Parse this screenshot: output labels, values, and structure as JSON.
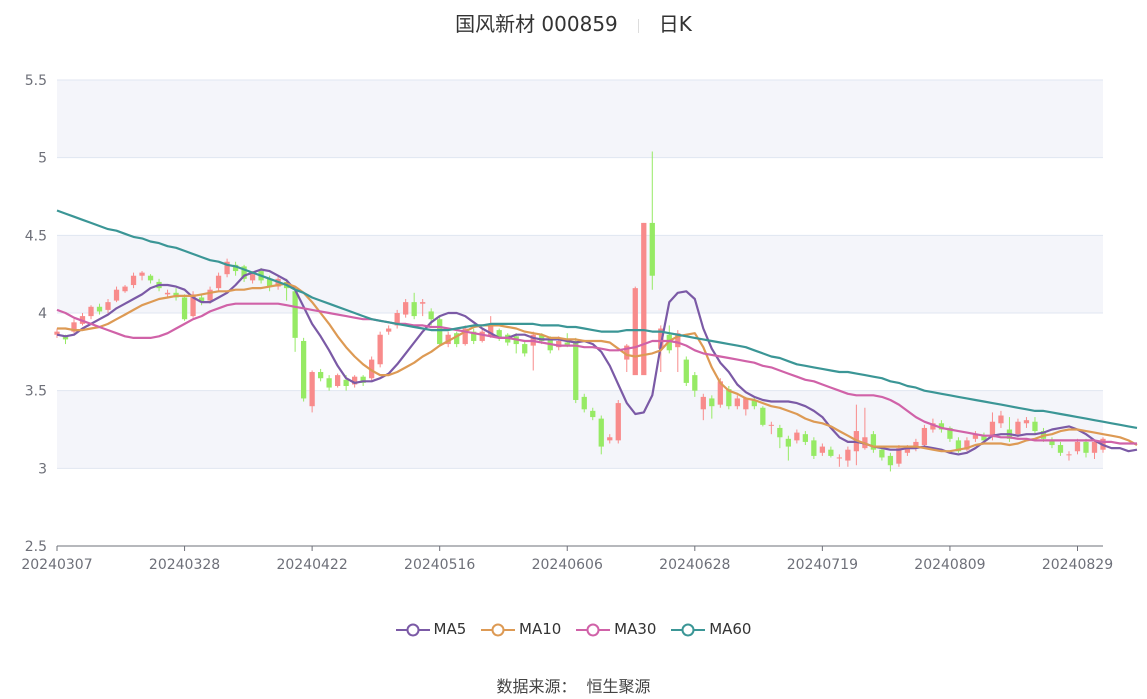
{
  "header": {
    "title": "国风新材 000859",
    "period": "日K"
  },
  "footer": {
    "source_label": "数据来源：",
    "source_name": "恒生聚源"
  },
  "colors": {
    "up": "#f88b8b",
    "down": "#96ea64",
    "MA5": "#7b5aa6",
    "MA10": "#dd9a54",
    "MA30": "#d062a8",
    "MA60": "#3b9696",
    "band": "#f4f5fa",
    "grid": "#e0e6f1",
    "axis": "#6e7079"
  },
  "chart_data": {
    "type": "candlestick",
    "y_ticks": [
      "2.5",
      "3",
      "3.5",
      "4",
      "4.5",
      "5",
      "5.5"
    ],
    "ylim": [
      2.5,
      5.5
    ],
    "x_ticks": [
      "20240307",
      "20240328",
      "20240422",
      "20240516",
      "20240606",
      "20240628",
      "20240719",
      "20240809",
      "20240829"
    ],
    "x_tick_index": [
      0,
      15,
      30,
      45,
      60,
      75,
      90,
      105,
      120
    ],
    "grid": true,
    "legend_position": "bottom-center",
    "candles": [
      [
        3.86,
        3.88,
        3.9,
        3.84
      ],
      [
        3.85,
        3.83,
        3.86,
        3.8
      ],
      [
        3.88,
        3.94,
        3.96,
        3.87
      ],
      [
        3.93,
        3.98,
        4.0,
        3.92
      ],
      [
        3.98,
        4.04,
        4.05,
        3.96
      ],
      [
        4.04,
        4.01,
        4.06,
        3.99
      ],
      [
        4.02,
        4.07,
        4.09,
        4.0
      ],
      [
        4.08,
        4.15,
        4.17,
        4.07
      ],
      [
        4.14,
        4.17,
        4.18,
        4.13
      ],
      [
        4.18,
        4.24,
        4.26,
        4.16
      ],
      [
        4.24,
        4.26,
        4.27,
        4.21
      ],
      [
        4.24,
        4.21,
        4.25,
        4.19
      ],
      [
        4.2,
        4.16,
        4.22,
        4.14
      ],
      [
        4.12,
        4.13,
        4.15,
        4.1
      ],
      [
        4.13,
        4.1,
        4.16,
        4.08
      ],
      [
        4.1,
        3.96,
        4.12,
        3.95
      ],
      [
        3.98,
        4.12,
        4.14,
        3.97
      ],
      [
        4.1,
        4.07,
        4.12,
        4.05
      ],
      [
        4.08,
        4.15,
        4.17,
        4.06
      ],
      [
        4.16,
        4.24,
        4.26,
        4.14
      ],
      [
        4.25,
        4.33,
        4.35,
        4.23
      ],
      [
        4.31,
        4.27,
        4.33,
        4.24
      ],
      [
        4.3,
        4.22,
        4.31,
        4.2
      ],
      [
        4.21,
        4.25,
        4.27,
        4.19
      ],
      [
        4.27,
        4.21,
        4.29,
        4.19
      ],
      [
        4.22,
        4.17,
        4.24,
        4.14
      ],
      [
        4.17,
        4.22,
        4.24,
        4.15
      ],
      [
        4.2,
        4.16,
        4.22,
        4.08
      ],
      [
        4.14,
        3.84,
        4.16,
        3.75
      ],
      [
        3.82,
        3.45,
        3.84,
        3.43
      ],
      [
        3.4,
        3.62,
        3.63,
        3.36
      ],
      [
        3.62,
        3.58,
        3.64,
        3.56
      ],
      [
        3.58,
        3.52,
        3.6,
        3.5
      ],
      [
        3.53,
        3.6,
        3.61,
        3.52
      ],
      [
        3.57,
        3.53,
        3.6,
        3.5
      ],
      [
        3.54,
        3.59,
        3.6,
        3.52
      ],
      [
        3.59,
        3.55,
        3.6,
        3.53
      ],
      [
        3.58,
        3.7,
        3.72,
        3.56
      ],
      [
        3.67,
        3.86,
        3.88,
        3.65
      ],
      [
        3.88,
        3.9,
        3.92,
        3.86
      ],
      [
        3.92,
        4.0,
        4.02,
        3.9
      ],
      [
        3.99,
        4.07,
        4.09,
        3.97
      ],
      [
        4.07,
        3.98,
        4.13,
        3.96
      ],
      [
        4.06,
        4.07,
        4.09,
        3.98
      ],
      [
        4.01,
        3.96,
        4.03,
        3.92
      ],
      [
        3.96,
        3.8,
        3.98,
        3.79
      ],
      [
        3.8,
        3.86,
        3.88,
        3.78
      ],
      [
        3.87,
        3.8,
        3.88,
        3.78
      ],
      [
        3.8,
        3.9,
        3.92,
        3.79
      ],
      [
        3.88,
        3.82,
        3.9,
        3.8
      ],
      [
        3.82,
        3.88,
        3.9,
        3.81
      ],
      [
        3.85,
        3.92,
        3.98,
        3.84
      ],
      [
        3.89,
        3.84,
        3.9,
        3.82
      ],
      [
        3.86,
        3.81,
        3.87,
        3.79
      ],
      [
        3.85,
        3.8,
        3.87,
        3.74
      ],
      [
        3.8,
        3.74,
        3.82,
        3.72
      ],
      [
        3.79,
        3.86,
        3.88,
        3.63
      ],
      [
        3.86,
        3.82,
        3.87,
        3.8
      ],
      [
        3.83,
        3.76,
        3.85,
        3.74
      ],
      [
        3.78,
        3.82,
        3.85,
        3.76
      ],
      [
        3.81,
        3.79,
        3.87,
        3.78
      ],
      [
        3.82,
        3.44,
        3.84,
        3.42
      ],
      [
        3.46,
        3.38,
        3.48,
        3.36
      ],
      [
        3.37,
        3.33,
        3.39,
        3.31
      ],
      [
        3.32,
        3.14,
        3.34,
        3.09
      ],
      [
        3.18,
        3.2,
        3.22,
        3.16
      ],
      [
        3.18,
        3.42,
        3.44,
        3.16
      ],
      [
        3.7,
        3.79,
        3.8,
        3.62
      ],
      [
        3.6,
        4.16,
        4.17,
        4.15
      ],
      [
        3.6,
        4.58,
        4.58,
        4.57
      ],
      [
        4.58,
        4.24,
        5.04,
        4.15
      ],
      [
        3.77,
        3.9,
        3.92,
        3.62
      ],
      [
        3.86,
        3.76,
        3.92,
        3.74
      ],
      [
        3.78,
        3.87,
        3.89,
        3.62
      ],
      [
        3.7,
        3.55,
        3.72,
        3.53
      ],
      [
        3.6,
        3.5,
        3.62,
        3.46
      ],
      [
        3.38,
        3.46,
        3.48,
        3.31
      ],
      [
        3.45,
        3.4,
        3.47,
        3.32
      ],
      [
        3.41,
        3.56,
        3.58,
        3.39
      ],
      [
        3.51,
        3.4,
        3.53,
        3.38
      ],
      [
        3.4,
        3.45,
        3.47,
        3.38
      ],
      [
        3.38,
        3.45,
        3.46,
        3.34
      ],
      [
        3.44,
        3.4,
        3.46,
        3.38
      ],
      [
        3.39,
        3.28,
        3.4,
        3.27
      ],
      [
        3.28,
        3.28,
        3.3,
        3.22
      ],
      [
        3.26,
        3.2,
        3.28,
        3.13
      ],
      [
        3.19,
        3.14,
        3.21,
        3.05
      ],
      [
        3.18,
        3.23,
        3.25,
        3.16
      ],
      [
        3.22,
        3.17,
        3.24,
        3.15
      ],
      [
        3.18,
        3.08,
        3.2,
        3.06
      ],
      [
        3.1,
        3.14,
        3.16,
        3.08
      ],
      [
        3.12,
        3.08,
        3.14,
        3.07
      ],
      [
        3.07,
        3.07,
        3.09,
        3.01
      ],
      [
        3.05,
        3.12,
        3.14,
        3.01
      ],
      [
        3.11,
        3.24,
        3.41,
        3.02
      ],
      [
        3.13,
        3.2,
        3.39,
        3.12
      ],
      [
        3.22,
        3.12,
        3.24,
        3.1
      ],
      [
        3.12,
        3.07,
        3.14,
        3.05
      ],
      [
        3.08,
        3.02,
        3.1,
        2.98
      ],
      [
        3.03,
        3.13,
        3.15,
        3.01
      ],
      [
        3.1,
        3.13,
        3.15,
        3.08
      ],
      [
        3.13,
        3.17,
        3.19,
        3.11
      ],
      [
        3.15,
        3.26,
        3.28,
        3.13
      ],
      [
        3.25,
        3.29,
        3.32,
        3.23
      ],
      [
        3.29,
        3.25,
        3.31,
        3.23
      ],
      [
        3.26,
        3.19,
        3.27,
        3.17
      ],
      [
        3.18,
        3.11,
        3.2,
        3.1
      ],
      [
        3.12,
        3.18,
        3.2,
        3.11
      ],
      [
        3.19,
        3.22,
        3.24,
        3.17
      ],
      [
        3.21,
        3.18,
        3.23,
        3.16
      ],
      [
        3.2,
        3.3,
        3.36,
        3.18
      ],
      [
        3.29,
        3.34,
        3.37,
        3.26
      ],
      [
        3.25,
        3.19,
        3.33,
        3.17
      ],
      [
        3.22,
        3.3,
        3.32,
        3.2
      ],
      [
        3.29,
        3.31,
        3.33,
        3.26
      ],
      [
        3.3,
        3.24,
        3.33,
        3.22
      ],
      [
        3.24,
        3.19,
        3.26,
        3.17
      ],
      [
        3.18,
        3.15,
        3.2,
        3.13
      ],
      [
        3.15,
        3.1,
        3.17,
        3.08
      ],
      [
        3.09,
        3.09,
        3.11,
        3.05
      ],
      [
        3.11,
        3.17,
        3.19,
        3.09
      ],
      [
        3.17,
        3.1,
        3.19,
        3.07
      ],
      [
        3.1,
        3.17,
        3.18,
        3.06
      ],
      [
        3.12,
        3.19,
        3.2,
        3.1
      ]
    ],
    "series": [
      {
        "name": "MA5",
        "values": [
          3.86,
          3.85,
          3.86,
          3.9,
          3.93,
          3.96,
          3.99,
          4.03,
          4.06,
          4.09,
          4.12,
          4.16,
          4.18,
          4.18,
          4.17,
          4.15,
          4.1,
          4.07,
          4.07,
          4.1,
          4.13,
          4.18,
          4.24,
          4.26,
          4.28,
          4.27,
          4.24,
          4.21,
          4.15,
          4.04,
          3.93,
          3.85,
          3.76,
          3.66,
          3.58,
          3.55,
          3.56,
          3.56,
          3.58,
          3.61,
          3.67,
          3.74,
          3.81,
          3.88,
          3.94,
          3.98,
          4.0,
          4.0,
          3.98,
          3.94,
          3.9,
          3.87,
          3.84,
          3.84,
          3.86,
          3.86,
          3.84,
          3.83,
          3.83,
          3.83,
          3.82,
          3.81,
          3.82,
          3.8,
          3.75,
          3.66,
          3.54,
          3.42,
          3.35,
          3.36,
          3.47,
          3.79,
          4.07,
          4.13,
          4.14,
          4.09,
          3.9,
          3.77,
          3.68,
          3.62,
          3.54,
          3.49,
          3.46,
          3.44,
          3.43,
          3.43,
          3.43,
          3.42,
          3.4,
          3.37,
          3.33,
          3.26,
          3.2,
          3.17,
          3.17,
          3.16,
          3.14,
          3.13,
          3.12,
          3.12,
          3.13,
          3.13,
          3.14,
          3.13,
          3.12,
          3.1,
          3.09,
          3.1,
          3.13,
          3.17,
          3.21,
          3.22,
          3.22,
          3.21,
          3.22,
          3.22,
          3.23,
          3.25,
          3.26,
          3.27,
          3.25,
          3.22,
          3.18,
          3.15,
          3.13,
          3.13,
          3.11,
          3.12
        ]
      },
      {
        "name": "MA10",
        "values": [
          3.9,
          3.9,
          3.89,
          3.89,
          3.9,
          3.91,
          3.93,
          3.96,
          3.99,
          4.02,
          4.05,
          4.07,
          4.09,
          4.1,
          4.11,
          4.11,
          4.11,
          4.12,
          4.13,
          4.14,
          4.14,
          4.15,
          4.15,
          4.16,
          4.16,
          4.17,
          4.18,
          4.19,
          4.17,
          4.13,
          4.07,
          4.0,
          3.93,
          3.85,
          3.78,
          3.72,
          3.67,
          3.63,
          3.6,
          3.6,
          3.62,
          3.65,
          3.68,
          3.72,
          3.75,
          3.79,
          3.82,
          3.85,
          3.88,
          3.91,
          3.92,
          3.92,
          3.92,
          3.91,
          3.9,
          3.88,
          3.87,
          3.86,
          3.84,
          3.84,
          3.83,
          3.83,
          3.82,
          3.82,
          3.82,
          3.81,
          3.77,
          3.73,
          3.72,
          3.73,
          3.74,
          3.76,
          3.82,
          3.85,
          3.86,
          3.87,
          3.78,
          3.65,
          3.55,
          3.5,
          3.48,
          3.45,
          3.44,
          3.42,
          3.4,
          3.39,
          3.37,
          3.35,
          3.32,
          3.3,
          3.29,
          3.27,
          3.24,
          3.21,
          3.18,
          3.16,
          3.14,
          3.14,
          3.14,
          3.14,
          3.14,
          3.14,
          3.13,
          3.12,
          3.11,
          3.11,
          3.12,
          3.13,
          3.15,
          3.16,
          3.16,
          3.16,
          3.15,
          3.16,
          3.18,
          3.19,
          3.21,
          3.22,
          3.24,
          3.25,
          3.25,
          3.24,
          3.23,
          3.22,
          3.21,
          3.2,
          3.18,
          3.15
        ]
      },
      {
        "name": "MA30",
        "values": [
          4.02,
          4.0,
          3.97,
          3.95,
          3.93,
          3.91,
          3.89,
          3.87,
          3.85,
          3.84,
          3.84,
          3.84,
          3.85,
          3.87,
          3.9,
          3.93,
          3.96,
          3.98,
          4.01,
          4.03,
          4.05,
          4.06,
          4.06,
          4.06,
          4.06,
          4.06,
          4.06,
          4.05,
          4.04,
          4.03,
          4.02,
          4.01,
          4.0,
          3.99,
          3.98,
          3.97,
          3.96,
          3.96,
          3.95,
          3.94,
          3.93,
          3.93,
          3.92,
          3.92,
          3.91,
          3.91,
          3.9,
          3.89,
          3.88,
          3.87,
          3.86,
          3.85,
          3.84,
          3.84,
          3.83,
          3.82,
          3.82,
          3.81,
          3.8,
          3.79,
          3.79,
          3.79,
          3.78,
          3.78,
          3.77,
          3.76,
          3.76,
          3.77,
          3.78,
          3.8,
          3.82,
          3.82,
          3.82,
          3.81,
          3.79,
          3.76,
          3.74,
          3.73,
          3.72,
          3.71,
          3.7,
          3.69,
          3.68,
          3.66,
          3.65,
          3.63,
          3.61,
          3.59,
          3.57,
          3.56,
          3.54,
          3.52,
          3.5,
          3.48,
          3.47,
          3.47,
          3.47,
          3.46,
          3.44,
          3.41,
          3.37,
          3.33,
          3.3,
          3.28,
          3.26,
          3.25,
          3.24,
          3.23,
          3.22,
          3.21,
          3.21,
          3.2,
          3.2,
          3.19,
          3.19,
          3.18,
          3.18,
          3.18,
          3.18,
          3.18,
          3.18,
          3.18,
          3.18,
          3.17,
          3.17,
          3.16,
          3.16,
          3.16
        ]
      },
      {
        "name": "MA60",
        "values": [
          4.66,
          4.64,
          4.62,
          4.6,
          4.58,
          4.56,
          4.54,
          4.53,
          4.51,
          4.49,
          4.48,
          4.46,
          4.45,
          4.43,
          4.42,
          4.4,
          4.38,
          4.36,
          4.34,
          4.33,
          4.31,
          4.3,
          4.28,
          4.26,
          4.24,
          4.22,
          4.2,
          4.18,
          4.15,
          4.13,
          4.1,
          4.08,
          4.06,
          4.04,
          4.02,
          4.0,
          3.98,
          3.96,
          3.95,
          3.94,
          3.93,
          3.92,
          3.91,
          3.9,
          3.89,
          3.89,
          3.89,
          3.9,
          3.91,
          3.92,
          3.92,
          3.93,
          3.93,
          3.93,
          3.93,
          3.93,
          3.93,
          3.92,
          3.92,
          3.92,
          3.91,
          3.91,
          3.9,
          3.89,
          3.88,
          3.88,
          3.88,
          3.89,
          3.89,
          3.89,
          3.88,
          3.88,
          3.87,
          3.86,
          3.85,
          3.84,
          3.83,
          3.82,
          3.81,
          3.8,
          3.79,
          3.78,
          3.76,
          3.74,
          3.72,
          3.71,
          3.69,
          3.67,
          3.66,
          3.65,
          3.64,
          3.63,
          3.62,
          3.62,
          3.61,
          3.6,
          3.59,
          3.58,
          3.56,
          3.55,
          3.53,
          3.52,
          3.5,
          3.49,
          3.48,
          3.47,
          3.46,
          3.45,
          3.44,
          3.43,
          3.42,
          3.41,
          3.4,
          3.39,
          3.38,
          3.37,
          3.37,
          3.36,
          3.35,
          3.34,
          3.33,
          3.32,
          3.31,
          3.3,
          3.29,
          3.28,
          3.27,
          3.26
        ]
      }
    ]
  }
}
